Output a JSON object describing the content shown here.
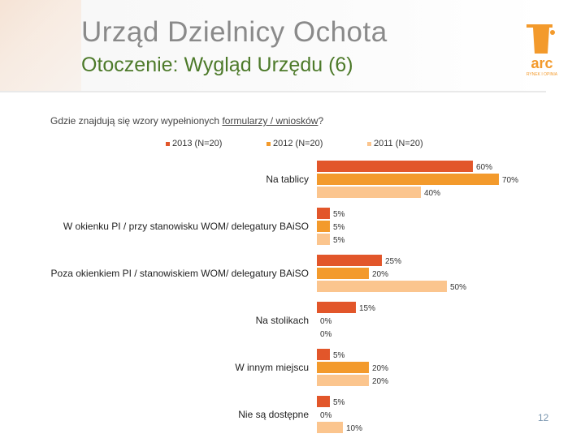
{
  "header": {
    "title": "Urząd Dzielnicy Ochota",
    "subtitle": "Otoczenie: Wygląd Urzędu (6)",
    "logo_text": "arc",
    "logo_tagline": "RYNEK I OPINIA"
  },
  "question": {
    "before": "Gdzie znajdują się wzory wypełnionych ",
    "underlined": "formularzy / wniosków",
    "after": "?"
  },
  "page_number": "12",
  "colors": {
    "2013": "#e2562a",
    "2012": "#f39a2c",
    "2011": "#fbc58e",
    "title": "#8a8a8a",
    "subtitle": "#4d7a2a"
  },
  "chart_data": {
    "type": "bar",
    "orientation": "horizontal",
    "categories": [
      "Na tablicy",
      "W okienku PI / przy stanowisku WOM/ delegatury BAiSO",
      "Poza okienkiem PI / stanowiskiem WOM/ delegatury BAiSO",
      "Na stolikach",
      "W innym miejscu",
      "Nie są dostępne"
    ],
    "series": [
      {
        "name": "2013 (N=20)",
        "values": [
          60,
          5,
          25,
          15,
          5,
          5
        ]
      },
      {
        "name": "2012 (N=20)",
        "values": [
          70,
          5,
          20,
          0,
          20,
          0
        ]
      },
      {
        "name": "2011 (N=20)",
        "values": [
          40,
          5,
          50,
          0,
          20,
          10
        ]
      }
    ],
    "value_labels": [
      [
        "60%",
        "5%",
        "25%",
        "15%",
        "5%",
        "5%"
      ],
      [
        "70%",
        "5%",
        "20%",
        "0%",
        "20%",
        "0%"
      ],
      [
        "40%",
        "5%",
        "50%",
        "0%",
        "20%",
        "10%"
      ]
    ],
    "legend_position": "top",
    "grid": false
  }
}
